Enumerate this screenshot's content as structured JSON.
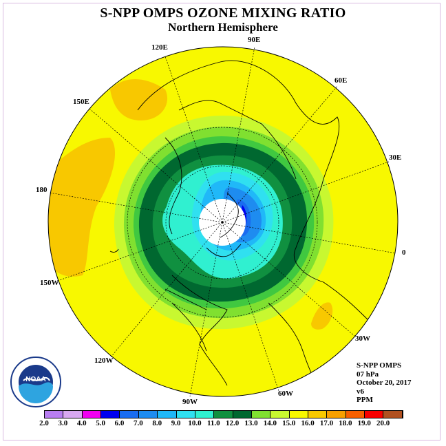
{
  "header": {
    "title": "S-NPP OMPS OZONE MIXING RATIO",
    "subtitle": "Northern Hemisphere"
  },
  "longitude_labels": {
    "e90": "90E",
    "e60": "60E",
    "e30": "30E",
    "zero": "0",
    "w30": "30W",
    "w60": "60W",
    "w90": "90W",
    "w120": "120W",
    "w150": "150W",
    "d180": "180",
    "e150": "150E",
    "e120": "120E"
  },
  "info": {
    "instrument": "S-NPP OMPS",
    "level": "07 hPa",
    "date": "October 20, 2017",
    "version": "v6",
    "units": "PPM"
  },
  "logo": {
    "text": "NOAA",
    "icon": "noaa-logo-icon"
  },
  "colorbar": {
    "ticks": [
      "2.0",
      "3.0",
      "4.0",
      "5.0",
      "6.0",
      "7.0",
      "8.0",
      "9.0",
      "10.0",
      "11.0",
      "12.0",
      "13.0",
      "14.0",
      "15.0",
      "16.0",
      "17.0",
      "18.0",
      "19.0",
      "20.0"
    ],
    "colors": [
      "#b87ef0",
      "#d8a8f0",
      "#f000f0",
      "#0000f0",
      "#1a6cf0",
      "#1e8cf0",
      "#20b8f8",
      "#30e0f0",
      "#30f0d0",
      "#109040",
      "#006830",
      "#80e030",
      "#c8f830",
      "#f8f800",
      "#f8c800",
      "#f8a000",
      "#f86000",
      "#f80000",
      "#b05020"
    ]
  }
}
